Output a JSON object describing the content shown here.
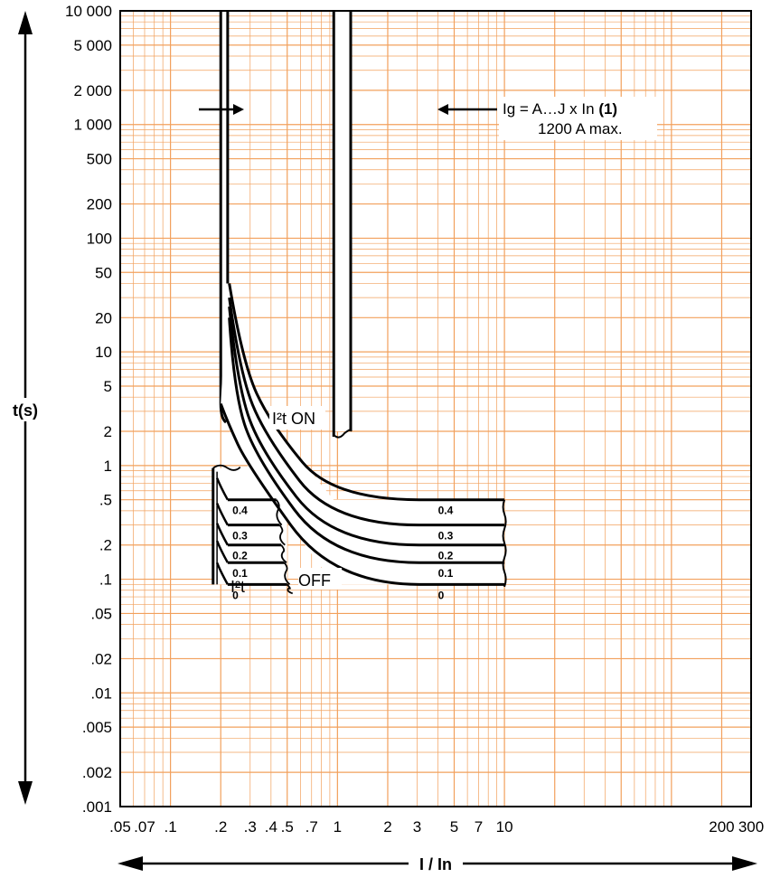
{
  "chart_data": {
    "type": "line",
    "title": "",
    "xlabel": "I / In",
    "ylabel": "t(s)",
    "x_scale": "log",
    "y_scale": "log",
    "xlim": [
      0.05,
      300
    ],
    "ylim": [
      0.001,
      10000
    ],
    "grid": true,
    "x_tick_labels": [
      {
        "value": 0.05,
        "label": ".05"
      },
      {
        "value": 0.07,
        "label": ".07"
      },
      {
        "value": 0.1,
        "label": ".1"
      },
      {
        "value": 0.2,
        "label": ".2"
      },
      {
        "value": 0.3,
        "label": ".3"
      },
      {
        "value": 0.4,
        "label": ".4"
      },
      {
        "value": 0.5,
        "label": ".5"
      },
      {
        "value": 0.7,
        "label": ".7"
      },
      {
        "value": 1,
        "label": "1"
      },
      {
        "value": 2,
        "label": "2"
      },
      {
        "value": 3,
        "label": "3"
      },
      {
        "value": 5,
        "label": "5"
      },
      {
        "value": 7,
        "label": "7"
      },
      {
        "value": 10,
        "label": "10"
      },
      {
        "value": 200,
        "label": "200"
      },
      {
        "value": 300,
        "label": "300"
      }
    ],
    "y_tick_labels": [
      {
        "value": 10000,
        "label": "10 000"
      },
      {
        "value": 5000,
        "label": "5 000"
      },
      {
        "value": 2000,
        "label": "2 000"
      },
      {
        "value": 1000,
        "label": "1 000"
      },
      {
        "value": 500,
        "label": "500"
      },
      {
        "value": 200,
        "label": "200"
      },
      {
        "value": 100,
        "label": "100"
      },
      {
        "value": 50,
        "label": "50"
      },
      {
        "value": 20,
        "label": "20"
      },
      {
        "value": 10,
        "label": "10"
      },
      {
        "value": 5,
        "label": "5"
      },
      {
        "value": 2,
        "label": "2"
      },
      {
        "value": 1,
        "label": "1"
      },
      {
        "value": 0.5,
        "label": ".5"
      },
      {
        "value": 0.2,
        "label": ".2"
      },
      {
        "value": 0.1,
        "label": ".1"
      },
      {
        "value": 0.05,
        "label": ".05"
      },
      {
        "value": 0.02,
        "label": ".02"
      },
      {
        "value": 0.01,
        "label": ".01"
      },
      {
        "value": 0.005,
        "label": ".005"
      },
      {
        "value": 0.002,
        "label": ".002"
      },
      {
        "value": 0.001,
        "label": ".001"
      }
    ],
    "pickup_band": {
      "x_min": 0.2,
      "x_max": 0.22,
      "y_top": 10000,
      "y_bottom": 3.5
    },
    "max_band": {
      "x_min": 0.95,
      "x_max": 1.2,
      "y_top": 10000,
      "y_bottom": 2
    },
    "series": [
      {
        "points": [
          [
            0.225,
            40
          ],
          [
            0.27,
            8
          ],
          [
            0.4,
            2.3
          ],
          [
            0.95,
            0.5
          ],
          [
            10,
            0.5
          ]
        ]
      },
      {
        "points": [
          [
            0.225,
            30
          ],
          [
            0.26,
            6.5
          ],
          [
            0.37,
            1.8
          ],
          [
            0.95,
            0.3
          ],
          [
            10,
            0.3
          ]
        ]
      },
      {
        "points": [
          [
            0.225,
            25
          ],
          [
            0.25,
            5.5
          ],
          [
            0.34,
            1.4
          ],
          [
            0.95,
            0.2
          ],
          [
            10,
            0.2
          ]
        ]
      },
      {
        "points": [
          [
            0.225,
            20
          ],
          [
            0.24,
            4.5
          ],
          [
            0.32,
            1.2
          ],
          [
            0.95,
            0.14
          ],
          [
            10,
            0.14
          ]
        ]
      },
      {
        "points": [
          [
            0.2,
            3.5
          ],
          [
            0.22,
            2.4
          ],
          [
            0.29,
            1.0
          ],
          [
            0.95,
            0.09
          ],
          [
            10,
            0.09
          ]
        ]
      }
    ],
    "off_steps": [
      {
        "t": 0.5,
        "x_end": 0.43
      },
      {
        "t": 0.3,
        "x_end": 0.45
      },
      {
        "t": 0.2,
        "x_end": 0.46
      },
      {
        "t": 0.14,
        "x_end": 0.48
      },
      {
        "t": 0.09,
        "x_end": 0.5
      }
    ],
    "off_band": {
      "x_min": 0.18,
      "x_max": 0.22,
      "y_top": 0.95,
      "y_bottom": 0.09
    },
    "delay_labels_right": [
      "0.4",
      "0.3",
      "0.2",
      "0.1",
      "0"
    ],
    "delay_labels_left": [
      "0.4",
      "0.3",
      "0.2",
      "0.1",
      "0"
    ],
    "annotations": {
      "i2t_on": "I²t ON",
      "i2t_off_prefix": "I²t",
      "i2t_off_suffix": "OFF",
      "ig_line1_pre": "Ig = A…J x In ",
      "ig_line1_bold": "(1)",
      "ig_line2": "1200 A max."
    }
  }
}
